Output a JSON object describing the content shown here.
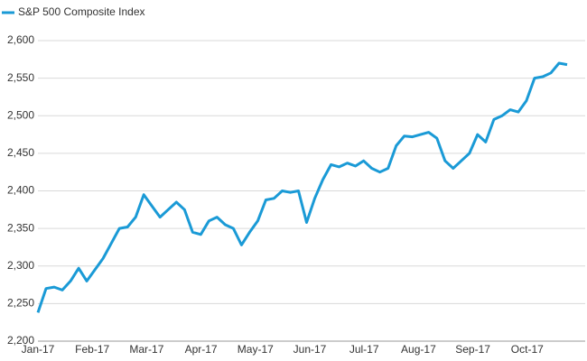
{
  "chart_data": {
    "type": "line",
    "x_tick_labels": [
      "Jan-17",
      "Feb-17",
      "Mar-17",
      "Apr-17",
      "May-17",
      "Jun-17",
      "Jul-17",
      "Aug-17",
      "Sep-17",
      "Oct-17"
    ],
    "series": [
      {
        "name": "S&P 500 Composite Index",
        "color": "#1a9ad6",
        "values": [
          2238,
          2270,
          2272,
          2268,
          2280,
          2297,
          2280,
          2295,
          2310,
          2330,
          2350,
          2352,
          2365,
          2395,
          2380,
          2365,
          2375,
          2385,
          2375,
          2345,
          2342,
          2360,
          2365,
          2355,
          2350,
          2328,
          2345,
          2360,
          2388,
          2390,
          2400,
          2398,
          2400,
          2358,
          2390,
          2415,
          2435,
          2432,
          2437,
          2433,
          2440,
          2430,
          2425,
          2430,
          2460,
          2473,
          2472,
          2475,
          2478,
          2470,
          2440,
          2430,
          2440,
          2450,
          2475,
          2465,
          2495,
          2500,
          2508,
          2505,
          2520,
          2550,
          2552,
          2557,
          2570,
          2568
        ]
      }
    ],
    "ylim": [
      2200,
      2600
    ],
    "yticks": [
      {
        "value": 2200,
        "label": "2,200"
      },
      {
        "value": 2250,
        "label": "2,250"
      },
      {
        "value": 2300,
        "label": "2,300"
      },
      {
        "value": 2350,
        "label": "2,350"
      },
      {
        "value": 2400,
        "label": "2,400"
      },
      {
        "value": 2450,
        "label": "2,450"
      },
      {
        "value": 2500,
        "label": "2,500"
      },
      {
        "value": 2550,
        "label": "2,550"
      },
      {
        "value": 2600,
        "label": "2,600"
      }
    ],
    "grid": true,
    "legend": "top-left"
  }
}
